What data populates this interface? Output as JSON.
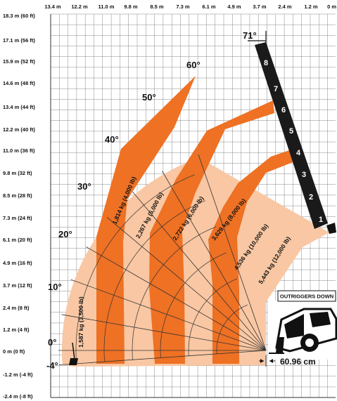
{
  "axes": {
    "x_ticks": [
      "13.4 m",
      "12.2 m",
      "11.0 m",
      "9.8 m",
      "8.5 m",
      "7.3 m",
      "6.1 m",
      "4.9 m",
      "3.7 m",
      "2.4 m",
      "1.2 m",
      "0 m"
    ],
    "y_ticks": [
      "18.3 m (60 ft)",
      "17.1 m (56 ft)",
      "15.9 m (52 ft)",
      "14.6 m (48 ft)",
      "13.4 m (44 ft)",
      "12.2 m (40 ft)",
      "11.0 m (36 ft)",
      "9.8 m (32 ft)",
      "8.5 m (28 ft)",
      "7.3 m (24 ft)",
      "6.1 m (20 ft)",
      "4.9 m (16 ft)",
      "3.7 m (12 ft)",
      "2.4 m (8 ft)",
      "1.2 m (4 ft)",
      "0 m (0 ft)",
      "-1.2 m (-4 ft)",
      "-2.4 m (-8 ft)"
    ]
  },
  "angles": [
    "71°",
    "60°",
    "50°",
    "40°",
    "30°",
    "20°",
    "10°",
    "0°",
    "-4°"
  ],
  "capacities": [
    "1,587 kg (3,500 lb)",
    "1,814 kg (4,000 lb)",
    "2,267 kg (5,000 lb)",
    "2,722 kg (6,000 lb)",
    "3,629 kg (8,000 lb)",
    "4,536 kg (10,000 lb)",
    "5,443 kg (12,000 lb)"
  ],
  "extension_marks": [
    "1",
    "2",
    "3",
    "4",
    "5",
    "6",
    "7",
    "8"
  ],
  "outriggers_label": "OUTRIGGERS DOWN",
  "dimension_label": "60.96 cm",
  "colors": {
    "light_zone": "#f9c7a3",
    "dark_zone": "#ee7124",
    "boom": "#1a1a1a",
    "grid": "#888888"
  }
}
